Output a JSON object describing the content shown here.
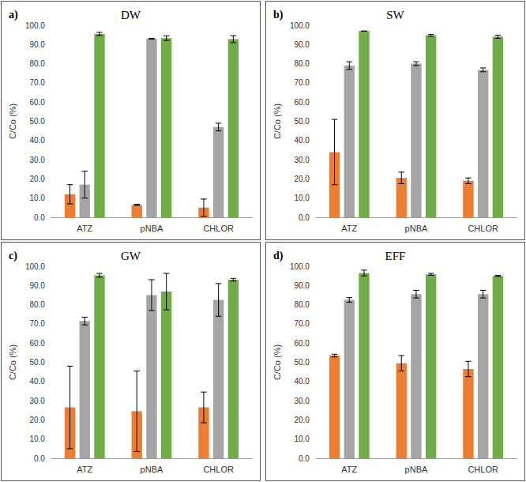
{
  "chart_data": [
    {
      "type": "bar",
      "title": "DW",
      "annotations": [
        "a)"
      ],
      "y_label": "C/Co (%)",
      "categories": [
        "ATZ",
        "pNBA",
        "CHLOR"
      ],
      "series": [
        {
          "color": "#ed7d31",
          "values": [
            12,
            6.5,
            5
          ],
          "errors": [
            5,
            0.3,
            4.5
          ]
        },
        {
          "color": "#a5a5a5",
          "values": [
            17,
            93,
            47
          ],
          "errors": [
            7,
            0.2,
            2
          ]
        },
        {
          "color": "#70ad47",
          "values": [
            95.5,
            93.3,
            92.8
          ],
          "errors": [
            0.8,
            1.2,
            1.8
          ]
        }
      ],
      "ylim": [
        0,
        100
      ],
      "yticks": [
        {
          "value": 0,
          "label": "0.0"
        },
        {
          "value": 10,
          "label": "10.0"
        },
        {
          "value": 20,
          "label": "20.0"
        },
        {
          "value": 30,
          "label": "30.0"
        },
        {
          "value": 40,
          "label": "40.0"
        },
        {
          "value": 50,
          "label": "50.0"
        },
        {
          "value": 60,
          "label": "60.0"
        },
        {
          "value": 70,
          "label": "70.0"
        },
        {
          "value": 80,
          "label": "80.0"
        },
        {
          "value": 90,
          "label": "90.0"
        },
        {
          "value": 100,
          "label": "100.0"
        }
      ],
      "grid": false
    },
    {
      "type": "bar",
      "title": "SW",
      "annotations": [
        "b)"
      ],
      "y_label": "C/Co (%)",
      "categories": [
        "ATZ",
        "pNBA",
        "CHLOR"
      ],
      "series": [
        {
          "color": "#ed7d31",
          "values": [
            34,
            20.5,
            19
          ],
          "errors": [
            17,
            3,
            1.5
          ]
        },
        {
          "color": "#a5a5a5",
          "values": [
            79,
            80,
            76.8
          ],
          "errors": [
            2,
            1,
            1
          ]
        },
        {
          "color": "#70ad47",
          "values": [
            97,
            94.8,
            94
          ],
          "errors": [
            0,
            0.5,
            0.8
          ]
        }
      ],
      "ylim": [
        0,
        100
      ],
      "yticks": [
        {
          "value": 0,
          "label": "0.0"
        },
        {
          "value": 10,
          "label": "10.0"
        },
        {
          "value": 20,
          "label": "20.0"
        },
        {
          "value": 30,
          "label": "30.0"
        },
        {
          "value": 40,
          "label": "40.0"
        },
        {
          "value": 50,
          "label": "50.0"
        },
        {
          "value": 60,
          "label": "60.0"
        },
        {
          "value": 70,
          "label": "70.0"
        },
        {
          "value": 80,
          "label": "80.0"
        },
        {
          "value": 90,
          "label": "90.0"
        },
        {
          "value": 100,
          "label": "100.0"
        }
      ],
      "grid": false
    },
    {
      "type": "bar",
      "title": "GW",
      "annotations": [
        "c)"
      ],
      "y_label": "C/Co (%)",
      "categories": [
        "ATZ",
        "pNBA",
        "CHLOR"
      ],
      "series": [
        {
          "color": "#ed7d31",
          "values": [
            26.5,
            24.5,
            26.5
          ],
          "errors": [
            21.5,
            21,
            8
          ]
        },
        {
          "color": "#a5a5a5",
          "values": [
            71.5,
            85,
            82.5
          ],
          "errors": [
            2,
            8,
            8.5
          ]
        },
        {
          "color": "#70ad47",
          "values": [
            95.3,
            86.8,
            93
          ],
          "errors": [
            1,
            9.5,
            0.7
          ]
        }
      ],
      "ylim": [
        0,
        100
      ],
      "yticks": [
        {
          "value": 0,
          "label": "0.0"
        },
        {
          "value": 10,
          "label": "10.0"
        },
        {
          "value": 20,
          "label": "20.0"
        },
        {
          "value": 30,
          "label": "30.0"
        },
        {
          "value": 40,
          "label": "40.0"
        },
        {
          "value": 50,
          "label": "50.0"
        },
        {
          "value": 60,
          "label": "60.0"
        },
        {
          "value": 70,
          "label": "70.0"
        },
        {
          "value": 80,
          "label": "80.0"
        },
        {
          "value": 90,
          "label": "90.0"
        },
        {
          "value": 100,
          "label": "100.0"
        }
      ],
      "grid": false
    },
    {
      "type": "bar",
      "title": "EFF",
      "annotations": [
        "d)"
      ],
      "y_label": "C/Co (%)",
      "categories": [
        "ATZ",
        "pNBA",
        "CHLOR"
      ],
      "series": [
        {
          "color": "#ed7d31",
          "values": [
            53.5,
            49.5,
            46.5
          ],
          "errors": [
            0.7,
            4,
            4
          ]
        },
        {
          "color": "#a5a5a5",
          "values": [
            82.5,
            85.5,
            85.5
          ],
          "errors": [
            1.2,
            2,
            2
          ]
        },
        {
          "color": "#70ad47",
          "values": [
            96.5,
            95.8,
            95
          ],
          "errors": [
            1.5,
            0.5,
            0.3
          ]
        }
      ],
      "ylim": [
        0,
        100
      ],
      "yticks": [
        {
          "value": 0,
          "label": "0.0"
        },
        {
          "value": 10,
          "label": "10.0"
        },
        {
          "value": 20,
          "label": "20.0"
        },
        {
          "value": 30,
          "label": "30.0"
        },
        {
          "value": 40,
          "label": "40.0"
        },
        {
          "value": 50,
          "label": "50.0"
        },
        {
          "value": 60,
          "label": "60.0"
        },
        {
          "value": 70,
          "label": "70.0"
        },
        {
          "value": 80,
          "label": "80.0"
        },
        {
          "value": 90,
          "label": "90.0"
        },
        {
          "value": 100,
          "label": "100.0"
        }
      ],
      "grid": false
    }
  ]
}
